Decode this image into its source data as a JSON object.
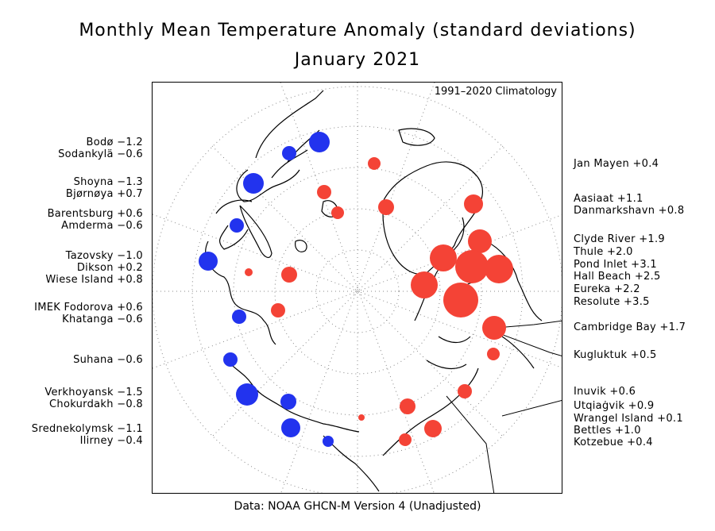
{
  "title": "Monthly Mean Temperature Anomaly (standard deviations)",
  "subtitle": "January 2021",
  "climatology": "1991–2020 Climatology",
  "source": "Data: NOAA GHCN-M Version 4 (Unadjusted)",
  "colors": {
    "positive": "#f44336",
    "negative": "#2233ee",
    "land": "#000000",
    "grid": "#888888"
  },
  "stations_left": [
    {
      "name": "Bodø",
      "value": "−1.2"
    },
    {
      "name": "Sodankylä",
      "value": "−0.6"
    },
    {
      "name": "Shoyna",
      "value": "−1.3"
    },
    {
      "name": "Bjørnøya",
      "value": "+0.7"
    },
    {
      "name": "Barentsburg",
      "value": "+0.6"
    },
    {
      "name": "Amderma",
      "value": "−0.6"
    },
    {
      "name": "Tazovsky",
      "value": "−1.0"
    },
    {
      "name": "Dikson",
      "value": "+0.2"
    },
    {
      "name": "Wiese Island",
      "value": "+0.8"
    },
    {
      "name": "IMEK Fodorova",
      "value": "+0.6"
    },
    {
      "name": "Khatanga",
      "value": "−0.6"
    },
    {
      "name": "Suhana",
      "value": "−0.6"
    },
    {
      "name": "Verkhoyansk",
      "value": "−1.5"
    },
    {
      "name": "Chokurdakh",
      "value": "−0.8"
    },
    {
      "name": "Srednekolymsk",
      "value": "−1.1"
    },
    {
      "name": "Ilirney",
      "value": "−0.4"
    }
  ],
  "stations_right": [
    {
      "name": "Jan Mayen",
      "value": "+0.4"
    },
    {
      "name": "Aasiaat",
      "value": "+1.1"
    },
    {
      "name": "Danmarkshavn",
      "value": "+0.8"
    },
    {
      "name": "Clyde River",
      "value": "+1.9"
    },
    {
      "name": "Thule",
      "value": "+2.0"
    },
    {
      "name": "Pond Inlet",
      "value": "+3.1"
    },
    {
      "name": "Hall Beach",
      "value": "+2.5"
    },
    {
      "name": "Eureka",
      "value": "+2.2"
    },
    {
      "name": "Resolute",
      "value": "+3.5"
    },
    {
      "name": "Cambridge Bay",
      "value": "+1.7"
    },
    {
      "name": "Kugluktuk",
      "value": "+0.5"
    },
    {
      "name": "Inuvik",
      "value": "+0.6"
    },
    {
      "name": "Utqiaġvik",
      "value": "+0.9"
    },
    {
      "name": "Wrangel Island",
      "value": "+0.1"
    },
    {
      "name": "Bettles",
      "value": "+1.0"
    },
    {
      "name": "Kotzebue",
      "value": "+0.4"
    }
  ]
}
